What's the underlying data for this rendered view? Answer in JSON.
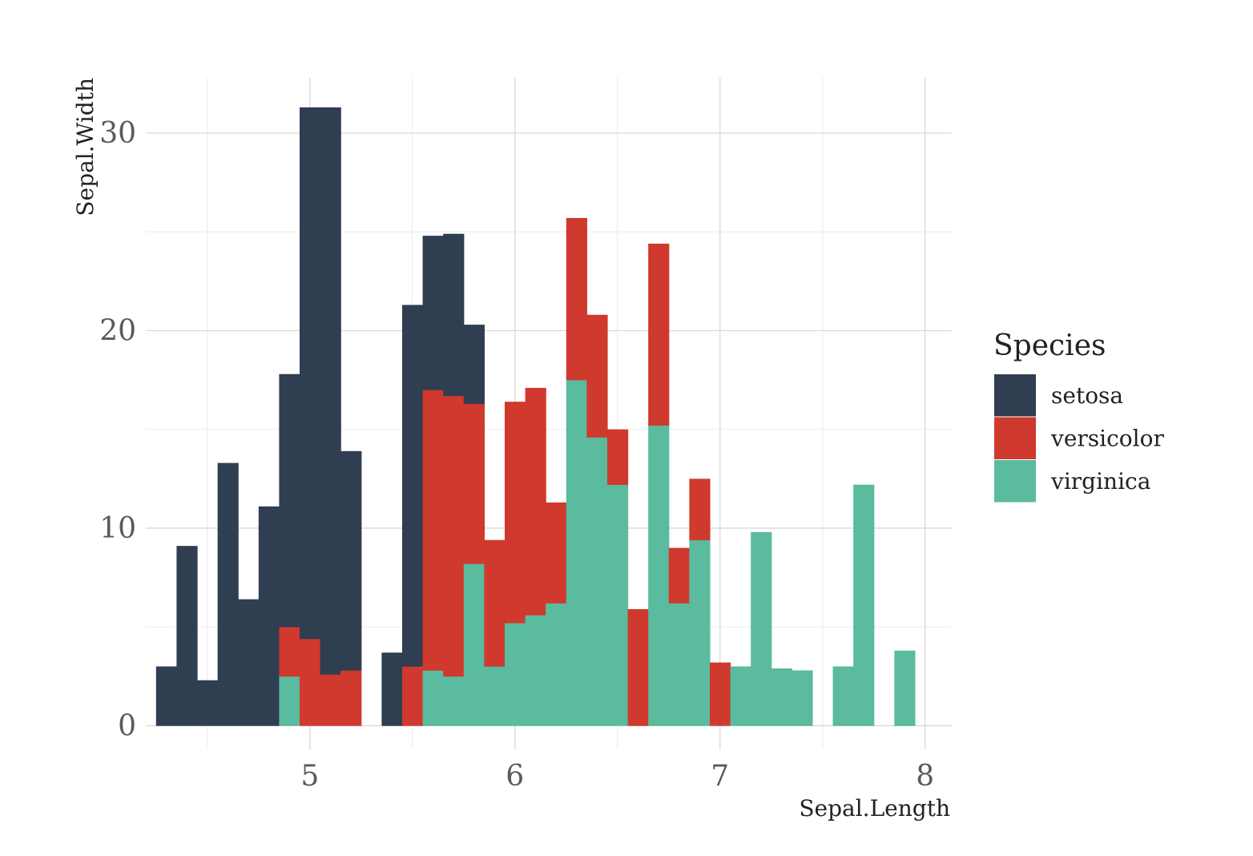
{
  "chart_data": {
    "type": "bar",
    "subtype": "stacked-histogram",
    "xlabel": "Sepal.Length",
    "ylabel": "Sepal.Width",
    "xlim": [
      4.2,
      8.13
    ],
    "ylim": [
      -1.2,
      32.8
    ],
    "xticks": [
      5,
      6,
      7,
      8
    ],
    "xtick_labels": [
      "5",
      "6",
      "7",
      "8"
    ],
    "yticks": [
      0,
      10,
      20,
      30
    ],
    "ytick_labels": [
      "0",
      "10",
      "20",
      "30"
    ],
    "x_minor_gridlines": [
      4.5,
      5.5,
      6.5,
      7.5
    ],
    "y_minor_gridlines": [
      5,
      15,
      25
    ],
    "grid": true,
    "bin_width": 0.1,
    "bin_starts": [
      4.25,
      4.35,
      4.45,
      4.55,
      4.65,
      4.75,
      4.85,
      4.95,
      5.05,
      5.15,
      5.25,
      5.35,
      5.45,
      5.55,
      5.65,
      5.75,
      5.85,
      5.95,
      6.05,
      6.15,
      6.25,
      6.35,
      6.45,
      6.55,
      6.65,
      6.75,
      6.85,
      6.95,
      7.05,
      7.15,
      7.25,
      7.35,
      7.45,
      7.55,
      7.65,
      7.75,
      7.85
    ],
    "series": [
      {
        "name": "setosa",
        "color": "#2f3e50",
        "values": [
          3.0,
          9.1,
          2.3,
          13.3,
          6.4,
          11.1,
          12.8,
          26.9,
          28.7,
          11.1,
          0,
          3.7,
          18.3,
          7.8,
          8.2,
          4.0,
          0,
          0,
          0,
          0,
          0,
          0,
          0,
          0,
          0,
          0,
          0,
          0,
          0,
          0,
          0,
          0,
          0,
          0,
          0,
          0,
          0
        ]
      },
      {
        "name": "versicolor",
        "color": "#d0392d",
        "values": [
          0,
          0,
          0,
          0,
          0,
          0,
          2.5,
          4.4,
          2.6,
          2.8,
          0,
          0,
          3.0,
          14.2,
          14.2,
          8.1,
          6.4,
          11.2,
          11.5,
          5.1,
          8.2,
          6.2,
          2.8,
          5.9,
          9.2,
          2.8,
          3.1,
          3.2,
          0,
          0,
          0,
          0,
          0,
          0,
          0,
          0,
          0
        ]
      },
      {
        "name": "virginica",
        "color": "#5abb9f",
        "values": [
          0,
          0,
          0,
          0,
          0,
          0,
          2.5,
          0,
          0,
          0,
          0,
          0,
          0,
          2.8,
          2.5,
          8.2,
          3.0,
          5.2,
          5.6,
          6.2,
          17.5,
          14.6,
          12.2,
          0,
          15.2,
          6.2,
          9.4,
          0,
          3.0,
          9.8,
          2.9,
          2.8,
          0,
          3.0,
          12.2,
          0,
          3.8
        ]
      }
    ],
    "legend": {
      "title": "Species",
      "position": "right",
      "entries": [
        "setosa",
        "versicolor",
        "virginica"
      ]
    }
  }
}
